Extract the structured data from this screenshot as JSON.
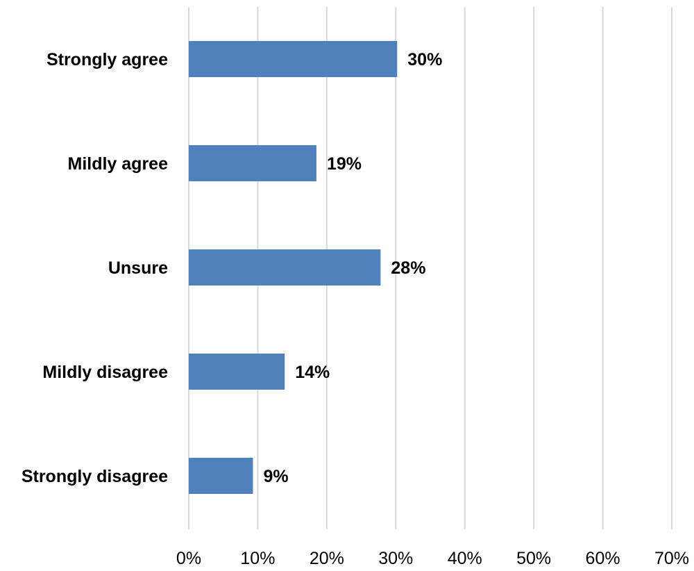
{
  "chart_data": {
    "type": "bar",
    "orientation": "horizontal",
    "categories": [
      "Strongly agree",
      "Mildly agree",
      "Unsure",
      "Mildly disagree",
      "Strongly disagree"
    ],
    "values": [
      30.2,
      18.5,
      27.8,
      13.9,
      9.3
    ],
    "data_labels": [
      "30%",
      "19%",
      "28%",
      "14%",
      "9%"
    ],
    "xlim": [
      0,
      70
    ],
    "x_ticks": [
      0,
      10,
      20,
      30,
      40,
      50,
      60,
      70
    ],
    "x_tick_labels": [
      "0%",
      "10%",
      "20%",
      "30%",
      "40%",
      "50%",
      "60%",
      "70%"
    ],
    "grid": "vertical",
    "legend": "none",
    "bar_color": "#4f81bd",
    "grid_color": "#d9d9d9"
  }
}
